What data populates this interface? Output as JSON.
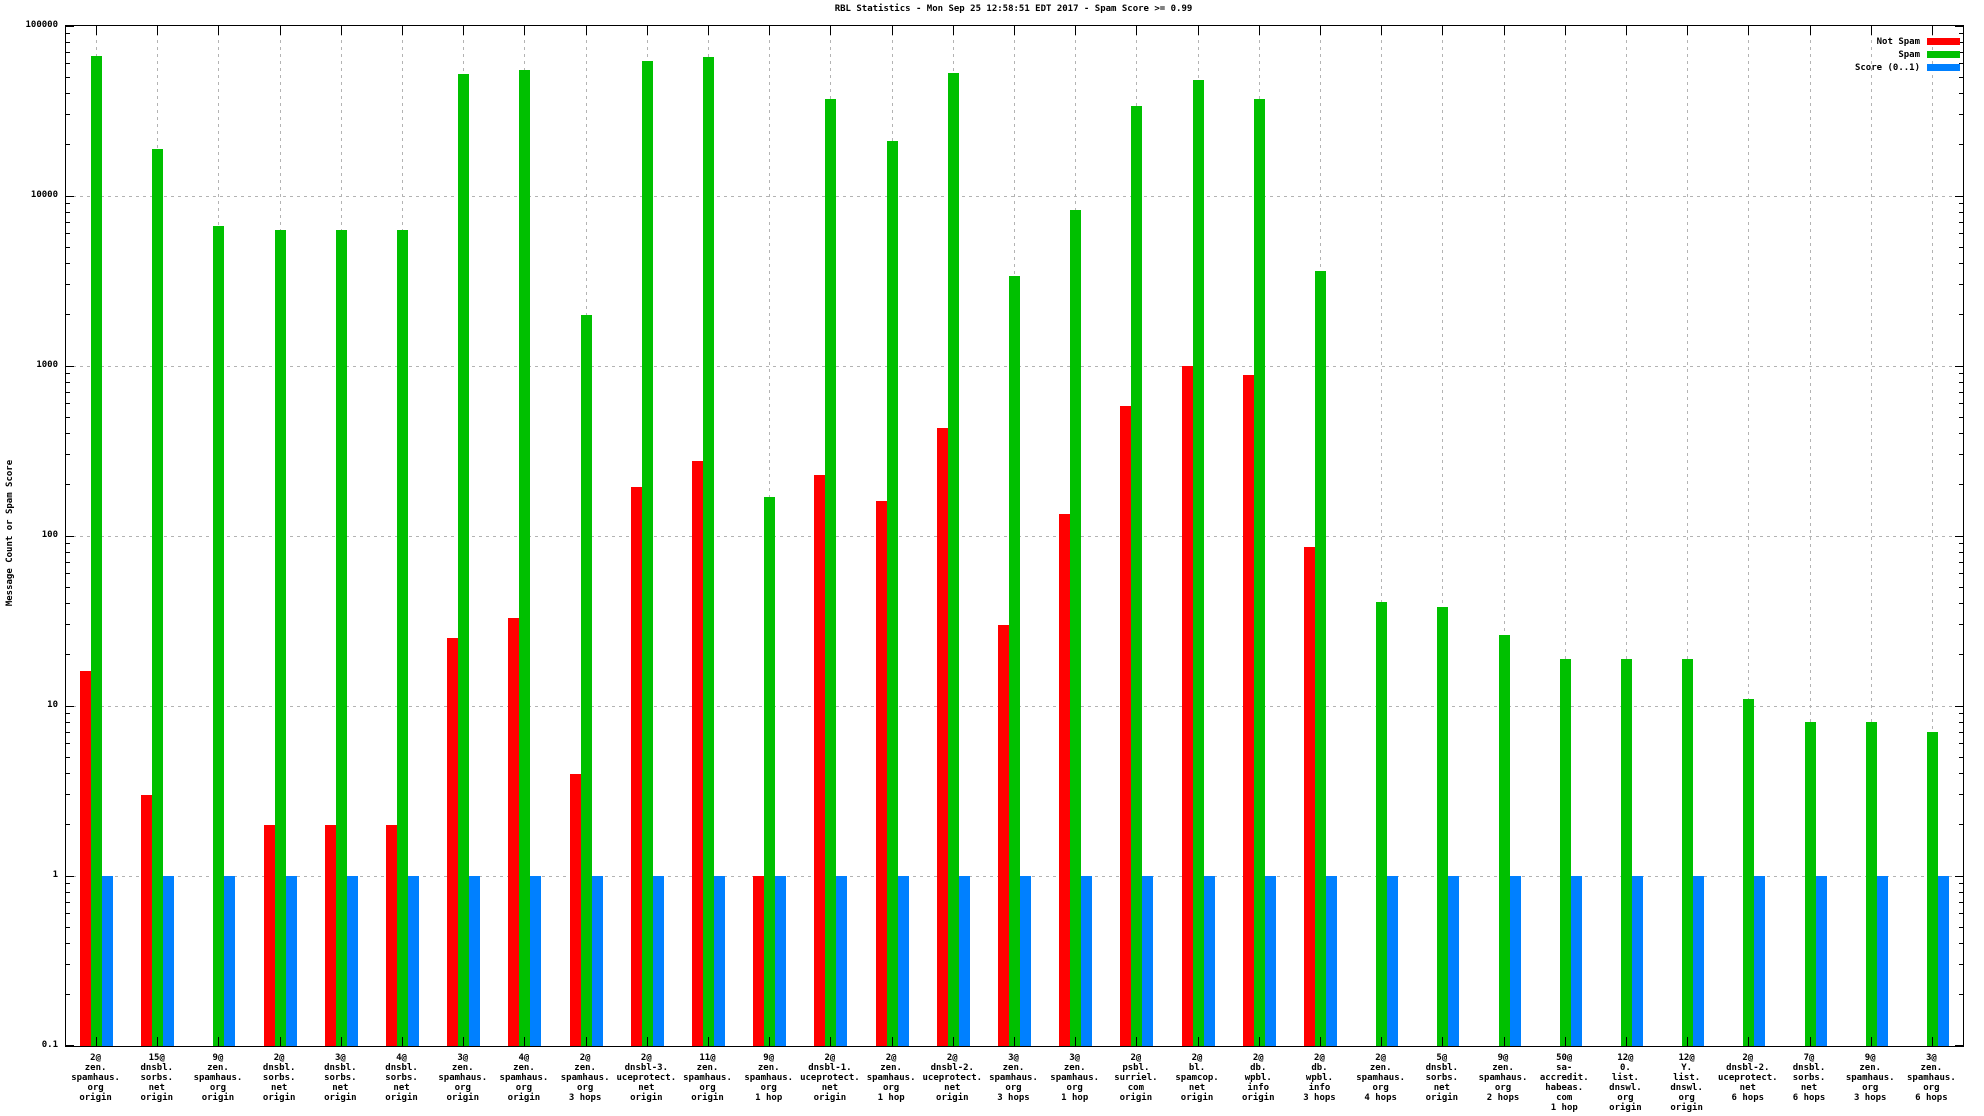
{
  "chart_data": {
    "type": "bar",
    "title": "RBL Statistics - Mon Sep 25 12:58:51 EDT 2017 - Spam Score >= 0.99",
    "ylabel": "Message Count or Spam Score",
    "xlabel": "",
    "yscale": "log",
    "ylim": [
      0.1,
      100000
    ],
    "yticks": [
      "100000",
      "10000",
      "1000",
      "100",
      "10",
      "1",
      "0.1"
    ],
    "grid": true,
    "legend_position": "top-right",
    "categories": [
      [
        "2@",
        "zen.",
        "spamhaus.",
        "org",
        "origin"
      ],
      [
        "15@",
        "dnsbl.",
        "sorbs.",
        "net",
        "origin"
      ],
      [
        "9@",
        "zen.",
        "spamhaus.",
        "org",
        "origin"
      ],
      [
        "2@",
        "dnsbl.",
        "sorbs.",
        "net",
        "origin"
      ],
      [
        "3@",
        "dnsbl.",
        "sorbs.",
        "net",
        "origin"
      ],
      [
        "4@",
        "dnsbl.",
        "sorbs.",
        "net",
        "origin"
      ],
      [
        "3@",
        "zen.",
        "spamhaus.",
        "org",
        "origin"
      ],
      [
        "4@",
        "zen.",
        "spamhaus.",
        "org",
        "origin"
      ],
      [
        "2@",
        "zen.",
        "spamhaus.",
        "org",
        "3 hops"
      ],
      [
        "2@",
        "dnsbl-3.",
        "uceprotect.",
        "net",
        "origin"
      ],
      [
        "11@",
        "zen.",
        "spamhaus.",
        "org",
        "origin"
      ],
      [
        "9@",
        "zen.",
        "spamhaus.",
        "org",
        "1 hop"
      ],
      [
        "2@",
        "dnsbl-1.",
        "uceprotect.",
        "net",
        "origin"
      ],
      [
        "2@",
        "zen.",
        "spamhaus.",
        "org",
        "1 hop"
      ],
      [
        "2@",
        "dnsbl-2.",
        "uceprotect.",
        "net",
        "origin"
      ],
      [
        "3@",
        "zen.",
        "spamhaus.",
        "org",
        "3 hops"
      ],
      [
        "3@",
        "zen.",
        "spamhaus.",
        "org",
        "1 hop"
      ],
      [
        "2@",
        "psbl.",
        "surriel.",
        "com",
        "origin"
      ],
      [
        "2@",
        "bl.",
        "spamcop.",
        "net",
        "origin"
      ],
      [
        "2@",
        "db.",
        "wpbl.",
        "info",
        "origin"
      ],
      [
        "2@",
        "db.",
        "wpbl.",
        "info",
        "3 hops"
      ],
      [
        "2@",
        "zen.",
        "spamhaus.",
        "org",
        "4 hops"
      ],
      [
        "5@",
        "dnsbl.",
        "sorbs.",
        "net",
        "origin"
      ],
      [
        "9@",
        "zen.",
        "spamhaus.",
        "org",
        "2 hops"
      ],
      [
        "50@",
        "sa-accredit.",
        "habeas.",
        "com",
        "1 hop"
      ],
      [
        "12@",
        "0.",
        "list.",
        "dnswl.",
        "org",
        "origin"
      ],
      [
        "12@",
        "Y.",
        "list.",
        "dnswl.",
        "org",
        "origin"
      ],
      [
        "2@",
        "dnsbl-2.",
        "uceprotect.",
        "net",
        "6 hops"
      ],
      [
        "7@",
        "dnsbl.",
        "sorbs.",
        "net",
        "6 hops"
      ],
      [
        "9@",
        "zen.",
        "spamhaus.",
        "org",
        "3 hops"
      ],
      [
        "3@",
        "zen.",
        "spamhaus.",
        "org",
        "6 hops"
      ]
    ],
    "series": [
      {
        "name": "Not Spam",
        "color": "#ff0000",
        "values": [
          16,
          3,
          0,
          2,
          2,
          2,
          25,
          33,
          4,
          195,
          275,
          1,
          230,
          160,
          430,
          30,
          135,
          580,
          1000,
          880,
          86,
          0,
          0,
          0,
          0,
          0,
          0,
          0,
          0,
          0,
          0
        ]
      },
      {
        "name": "Spam",
        "color": "#00c000",
        "values": [
          67000,
          19000,
          6700,
          6300,
          6300,
          6300,
          52000,
          55000,
          2000,
          62000,
          66000,
          170,
          37000,
          21000,
          53000,
          3400,
          8300,
          34000,
          48000,
          37000,
          3600,
          41,
          38,
          26,
          19,
          19,
          19,
          11,
          8,
          8,
          7
        ]
      },
      {
        "name": "Score (0..1)",
        "color": "#0080ff",
        "values": [
          1,
          1,
          1,
          1,
          1,
          1,
          1,
          1,
          1,
          1,
          1,
          1,
          1,
          1,
          1,
          1,
          1,
          1,
          1,
          1,
          1,
          1,
          1,
          1,
          1,
          1,
          1,
          1,
          1,
          1,
          1
        ]
      }
    ]
  }
}
